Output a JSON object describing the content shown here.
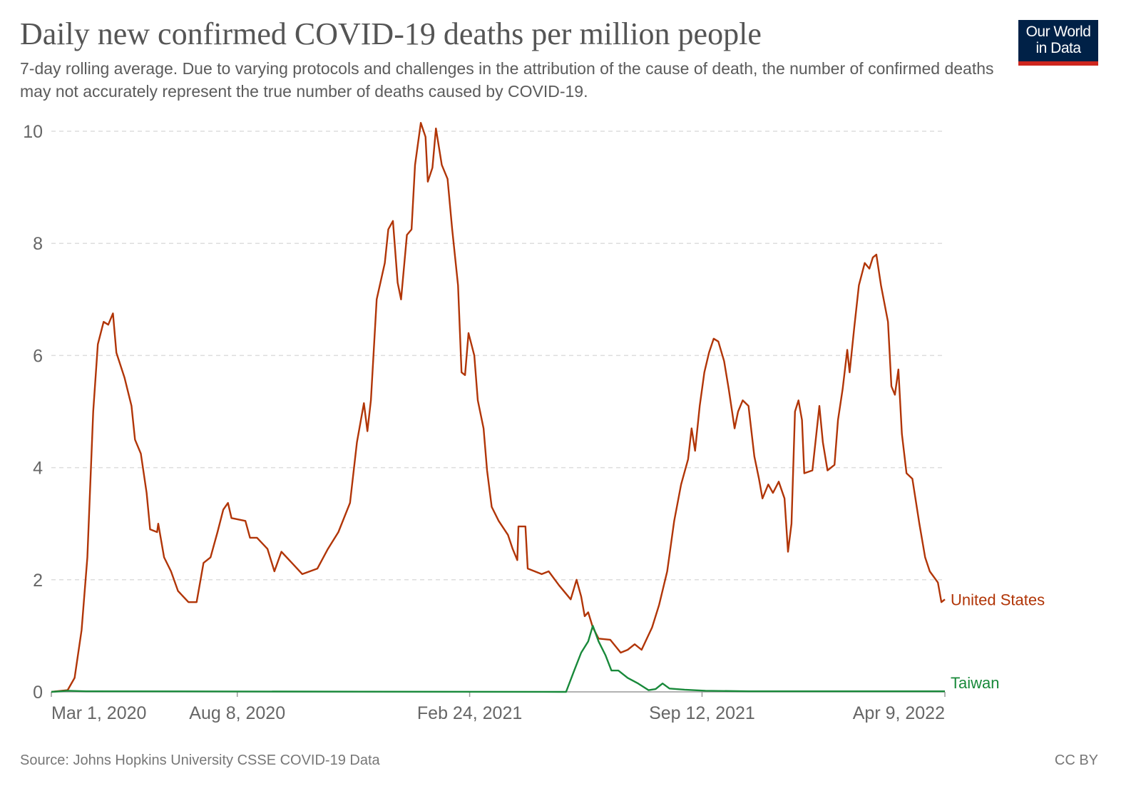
{
  "title": "Daily new confirmed COVID-19 deaths per million people",
  "subtitle": "7-day rolling average. Due to varying protocols and challenges in the attribution of the cause of death, the number of confirmed deaths may not accurately represent the true number of deaths caused by COVID-19.",
  "logo": {
    "line1": "Our World",
    "line2": "in Data"
  },
  "source": "Source: Johns Hopkins University CSSE COVID-19 Data",
  "license": "CC BY",
  "chart_data": {
    "type": "line",
    "title": "Daily new confirmed COVID-19 deaths per million people",
    "x_unit": "days since Mar 1, 2020",
    "xlim": [
      0,
      769
    ],
    "ylim": [
      0,
      10
    ],
    "grid": "horizontal dashed",
    "y_ticks": [
      0,
      2,
      4,
      6,
      8,
      10
    ],
    "x_ticks": [
      {
        "day": 0,
        "label": "Mar 1, 2020"
      },
      {
        "day": 160,
        "label": "Aug 8, 2020"
      },
      {
        "day": 360,
        "label": "Feb 24, 2021"
      },
      {
        "day": 560,
        "label": "Sep 12, 2021"
      },
      {
        "day": 769,
        "label": "Apr 9, 2022"
      }
    ],
    "legend": "inline-right",
    "series": [
      {
        "name": "United States",
        "color": "#b13507",
        "points": [
          [
            0,
            0
          ],
          [
            14,
            0.03
          ],
          [
            20,
            0.25
          ],
          [
            26,
            1.1
          ],
          [
            31,
            2.4
          ],
          [
            36,
            5.0
          ],
          [
            40,
            6.2
          ],
          [
            45,
            6.6
          ],
          [
            49,
            6.55
          ],
          [
            53,
            6.75
          ],
          [
            56,
            6.05
          ],
          [
            63,
            5.6
          ],
          [
            69,
            5.1
          ],
          [
            72,
            4.5
          ],
          [
            77,
            4.25
          ],
          [
            82,
            3.55
          ],
          [
            85,
            2.9
          ],
          [
            91,
            2.85
          ],
          [
            92,
            3.0
          ],
          [
            97,
            2.4
          ],
          [
            103,
            2.15
          ],
          [
            109,
            1.8
          ],
          [
            118,
            1.6
          ],
          [
            125,
            1.6
          ],
          [
            131,
            2.3
          ],
          [
            137,
            2.4
          ],
          [
            143,
            2.85
          ],
          [
            148,
            3.25
          ],
          [
            152,
            3.37
          ],
          [
            155,
            3.1
          ],
          [
            167,
            3.05
          ],
          [
            171,
            2.75
          ],
          [
            177,
            2.75
          ],
          [
            186,
            2.55
          ],
          [
            192,
            2.15
          ],
          [
            198,
            2.5
          ],
          [
            207,
            2.3
          ],
          [
            216,
            2.1
          ],
          [
            229,
            2.2
          ],
          [
            238,
            2.55
          ],
          [
            247,
            2.85
          ],
          [
            257,
            3.37
          ],
          [
            263,
            4.45
          ],
          [
            269,
            5.15
          ],
          [
            272,
            4.65
          ],
          [
            275,
            5.2
          ],
          [
            280,
            7.0
          ],
          [
            287,
            7.65
          ],
          [
            290,
            8.25
          ],
          [
            294,
            8.4
          ],
          [
            298,
            7.3
          ],
          [
            301,
            7.0
          ],
          [
            306,
            8.15
          ],
          [
            310,
            8.25
          ],
          [
            313,
            9.4
          ],
          [
            318,
            10.15
          ],
          [
            322,
            9.9
          ],
          [
            324,
            9.1
          ],
          [
            328,
            9.35
          ],
          [
            331,
            10.05
          ],
          [
            336,
            9.4
          ],
          [
            341,
            9.15
          ],
          [
            345,
            8.25
          ],
          [
            350,
            7.25
          ],
          [
            353,
            5.7
          ],
          [
            356,
            5.65
          ],
          [
            359,
            6.4
          ],
          [
            364,
            6.0
          ],
          [
            367,
            5.2
          ],
          [
            372,
            4.7
          ],
          [
            375,
            3.95
          ],
          [
            379,
            3.3
          ],
          [
            385,
            3.05
          ],
          [
            393,
            2.8
          ],
          [
            397,
            2.55
          ],
          [
            401,
            2.35
          ],
          [
            402,
            2.95
          ],
          [
            408,
            2.95
          ],
          [
            410,
            2.2
          ],
          [
            422,
            2.1
          ],
          [
            428,
            2.15
          ],
          [
            437,
            1.9
          ],
          [
            447,
            1.65
          ],
          [
            452,
            2.0
          ],
          [
            456,
            1.7
          ],
          [
            459,
            1.35
          ],
          [
            462,
            1.42
          ],
          [
            466,
            1.15
          ],
          [
            471,
            0.95
          ],
          [
            481,
            0.93
          ],
          [
            490,
            0.7
          ],
          [
            496,
            0.75
          ],
          [
            502,
            0.85
          ],
          [
            508,
            0.75
          ],
          [
            517,
            1.15
          ],
          [
            523,
            1.55
          ],
          [
            530,
            2.15
          ],
          [
            536,
            3.05
          ],
          [
            542,
            3.7
          ],
          [
            548,
            4.15
          ],
          [
            551,
            4.7
          ],
          [
            554,
            4.3
          ],
          [
            558,
            5.1
          ],
          [
            562,
            5.7
          ],
          [
            566,
            6.05
          ],
          [
            570,
            6.3
          ],
          [
            574,
            6.25
          ],
          [
            579,
            5.9
          ],
          [
            583,
            5.4
          ],
          [
            588,
            4.7
          ],
          [
            591,
            5.0
          ],
          [
            595,
            5.2
          ],
          [
            600,
            5.1
          ],
          [
            605,
            4.2
          ],
          [
            609,
            3.8
          ],
          [
            612,
            3.45
          ],
          [
            617,
            3.7
          ],
          [
            621,
            3.55
          ],
          [
            626,
            3.75
          ],
          [
            631,
            3.45
          ],
          [
            634,
            2.5
          ],
          [
            637,
            3.0
          ],
          [
            640,
            5.0
          ],
          [
            643,
            5.2
          ],
          [
            646,
            4.85
          ],
          [
            648,
            3.9
          ],
          [
            655,
            3.95
          ],
          [
            661,
            5.1
          ],
          [
            664,
            4.45
          ],
          [
            668,
            3.95
          ],
          [
            674,
            4.05
          ],
          [
            677,
            4.85
          ],
          [
            681,
            5.4
          ],
          [
            685,
            6.1
          ],
          [
            687,
            5.7
          ],
          [
            691,
            6.5
          ],
          [
            695,
            7.25
          ],
          [
            700,
            7.65
          ],
          [
            704,
            7.55
          ],
          [
            707,
            7.75
          ],
          [
            710,
            7.8
          ],
          [
            714,
            7.25
          ],
          [
            720,
            6.6
          ],
          [
            723,
            5.45
          ],
          [
            726,
            5.3
          ],
          [
            729,
            5.75
          ],
          [
            732,
            4.6
          ],
          [
            736,
            3.9
          ],
          [
            741,
            3.8
          ],
          [
            747,
            3.0
          ],
          [
            752,
            2.4
          ],
          [
            756,
            2.15
          ],
          [
            763,
            1.95
          ],
          [
            766,
            1.6
          ],
          [
            769,
            1.65
          ]
        ]
      },
      {
        "name": "Taiwan",
        "color": "#18893a",
        "points": [
          [
            0,
            0
          ],
          [
            14,
            0.02
          ],
          [
            30,
            0.01
          ],
          [
            440,
            0
          ],
          [
            443,
            0
          ],
          [
            450,
            0.38
          ],
          [
            456,
            0.7
          ],
          [
            462,
            0.9
          ],
          [
            466,
            1.18
          ],
          [
            471,
            0.9
          ],
          [
            477,
            0.65
          ],
          [
            482,
            0.38
          ],
          [
            488,
            0.38
          ],
          [
            496,
            0.25
          ],
          [
            505,
            0.15
          ],
          [
            514,
            0.03
          ],
          [
            520,
            0.05
          ],
          [
            526,
            0.15
          ],
          [
            532,
            0.06
          ],
          [
            545,
            0.04
          ],
          [
            563,
            0.02
          ],
          [
            600,
            0.01
          ],
          [
            769,
            0.01
          ]
        ]
      }
    ]
  }
}
